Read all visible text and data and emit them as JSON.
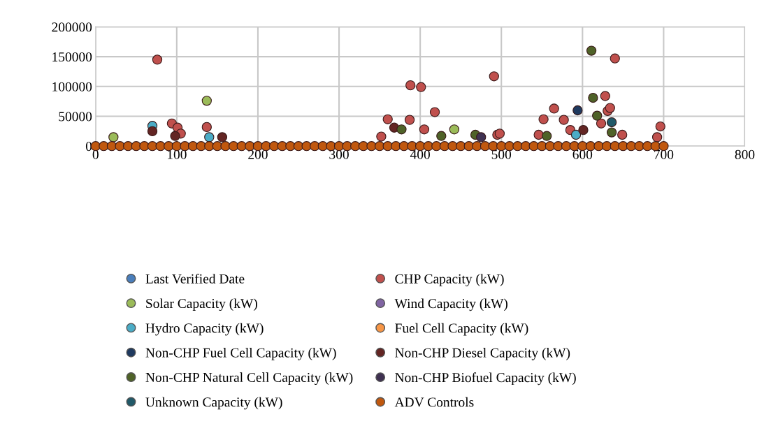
{
  "chart_data": {
    "type": "scatter",
    "xlim": [
      0,
      800
    ],
    "xticks": [
      0,
      100,
      200,
      300,
      400,
      500,
      600,
      700,
      800
    ],
    "ylim": [
      0,
      200000
    ],
    "yticks": [
      0,
      50000,
      100000,
      150000,
      200000
    ],
    "grid": true,
    "legend": "bottom",
    "marker": "circle",
    "series": [
      {
        "name": "Last Verified Date",
        "color": "#4a7ebb"
      },
      {
        "name": "CHP Capacity (kW)",
        "color": "#c0504d",
        "x": [
          76,
          94,
          101,
          105,
          137,
          352,
          360,
          387,
          388,
          401,
          405,
          418,
          491,
          495,
          498,
          546,
          552,
          565,
          577,
          585,
          623,
          628,
          631,
          634,
          640,
          649,
          696,
          692
        ],
        "values": [
          145000,
          38000,
          31000,
          21000,
          32000,
          16000,
          45000,
          44000,
          102000,
          99000,
          28000,
          57000,
          117000,
          19000,
          21000,
          19000,
          45000,
          63000,
          44000,
          27000,
          38000,
          84000,
          59000,
          64000,
          147000,
          19000,
          33000,
          15000
        ]
      },
      {
        "name": "Solar Capacity (kW)",
        "color": "#9bbb59",
        "x": [
          22,
          137,
          442
        ],
        "values": [
          15000,
          76000,
          28000
        ]
      },
      {
        "name": "Wind Capacity (kW)",
        "color": "#8064a2"
      },
      {
        "name": "Hydro Capacity (kW)",
        "color": "#4bacc6",
        "x": [
          70,
          140,
          592
        ],
        "values": [
          34000,
          15000,
          19000
        ]
      },
      {
        "name": "Fuel Cell Capacity (kW)",
        "color": "#f79646"
      },
      {
        "name": "Non-CHP Fuel Cell Capacity (kW)",
        "color": "#1f3a5f",
        "x": [
          594
        ],
        "values": [
          60000
        ]
      },
      {
        "name": "Non-CHP Diesel Capacity (kW)",
        "color": "#632523",
        "x": [
          70,
          98,
          156,
          368,
          601
        ],
        "values": [
          25000,
          17000,
          15000,
          31000,
          27000
        ]
      },
      {
        "name": "Non-CHP Natural Cell Capacity (kW)",
        "color": "#4f6228",
        "x": [
          377,
          426,
          468,
          556,
          611,
          613,
          618,
          636
        ],
        "values": [
          28000,
          17000,
          19000,
          17000,
          160000,
          81000,
          51000,
          23000
        ]
      },
      {
        "name": "Non-CHP Biofuel Capacity (kW)",
        "color": "#3f3151",
        "x": [
          475
        ],
        "values": [
          15000
        ]
      },
      {
        "name": "Unknown Capacity (kW)",
        "color": "#215968",
        "x": [
          636
        ],
        "values": [
          40000
        ]
      },
      {
        "name": "ADV Controls",
        "color": "#c0580f",
        "x": [
          0,
          10,
          20,
          30,
          40,
          50,
          60,
          70,
          80,
          90,
          100,
          110,
          120,
          130,
          140,
          150,
          160,
          170,
          180,
          190,
          200,
          210,
          220,
          230,
          240,
          250,
          260,
          270,
          280,
          290,
          300,
          310,
          320,
          330,
          340,
          350,
          360,
          370,
          380,
          390,
          400,
          410,
          420,
          430,
          440,
          450,
          460,
          470,
          480,
          490,
          500,
          510,
          520,
          530,
          540,
          550,
          560,
          570,
          580,
          590,
          600,
          610,
          620,
          630,
          640,
          650,
          660,
          670,
          680,
          690,
          700
        ],
        "values": [
          0,
          0,
          0,
          0,
          0,
          0,
          0,
          0,
          0,
          0,
          0,
          0,
          0,
          0,
          0,
          0,
          0,
          0,
          0,
          0,
          0,
          0,
          0,
          0,
          0,
          0,
          0,
          0,
          0,
          0,
          0,
          0,
          0,
          0,
          0,
          0,
          0,
          0,
          0,
          0,
          0,
          0,
          0,
          0,
          0,
          0,
          0,
          0,
          0,
          0,
          0,
          0,
          0,
          0,
          0,
          0,
          0,
          0,
          0,
          0,
          0,
          0,
          0,
          0,
          0,
          0,
          0,
          0,
          0,
          0,
          0
        ]
      }
    ]
  }
}
